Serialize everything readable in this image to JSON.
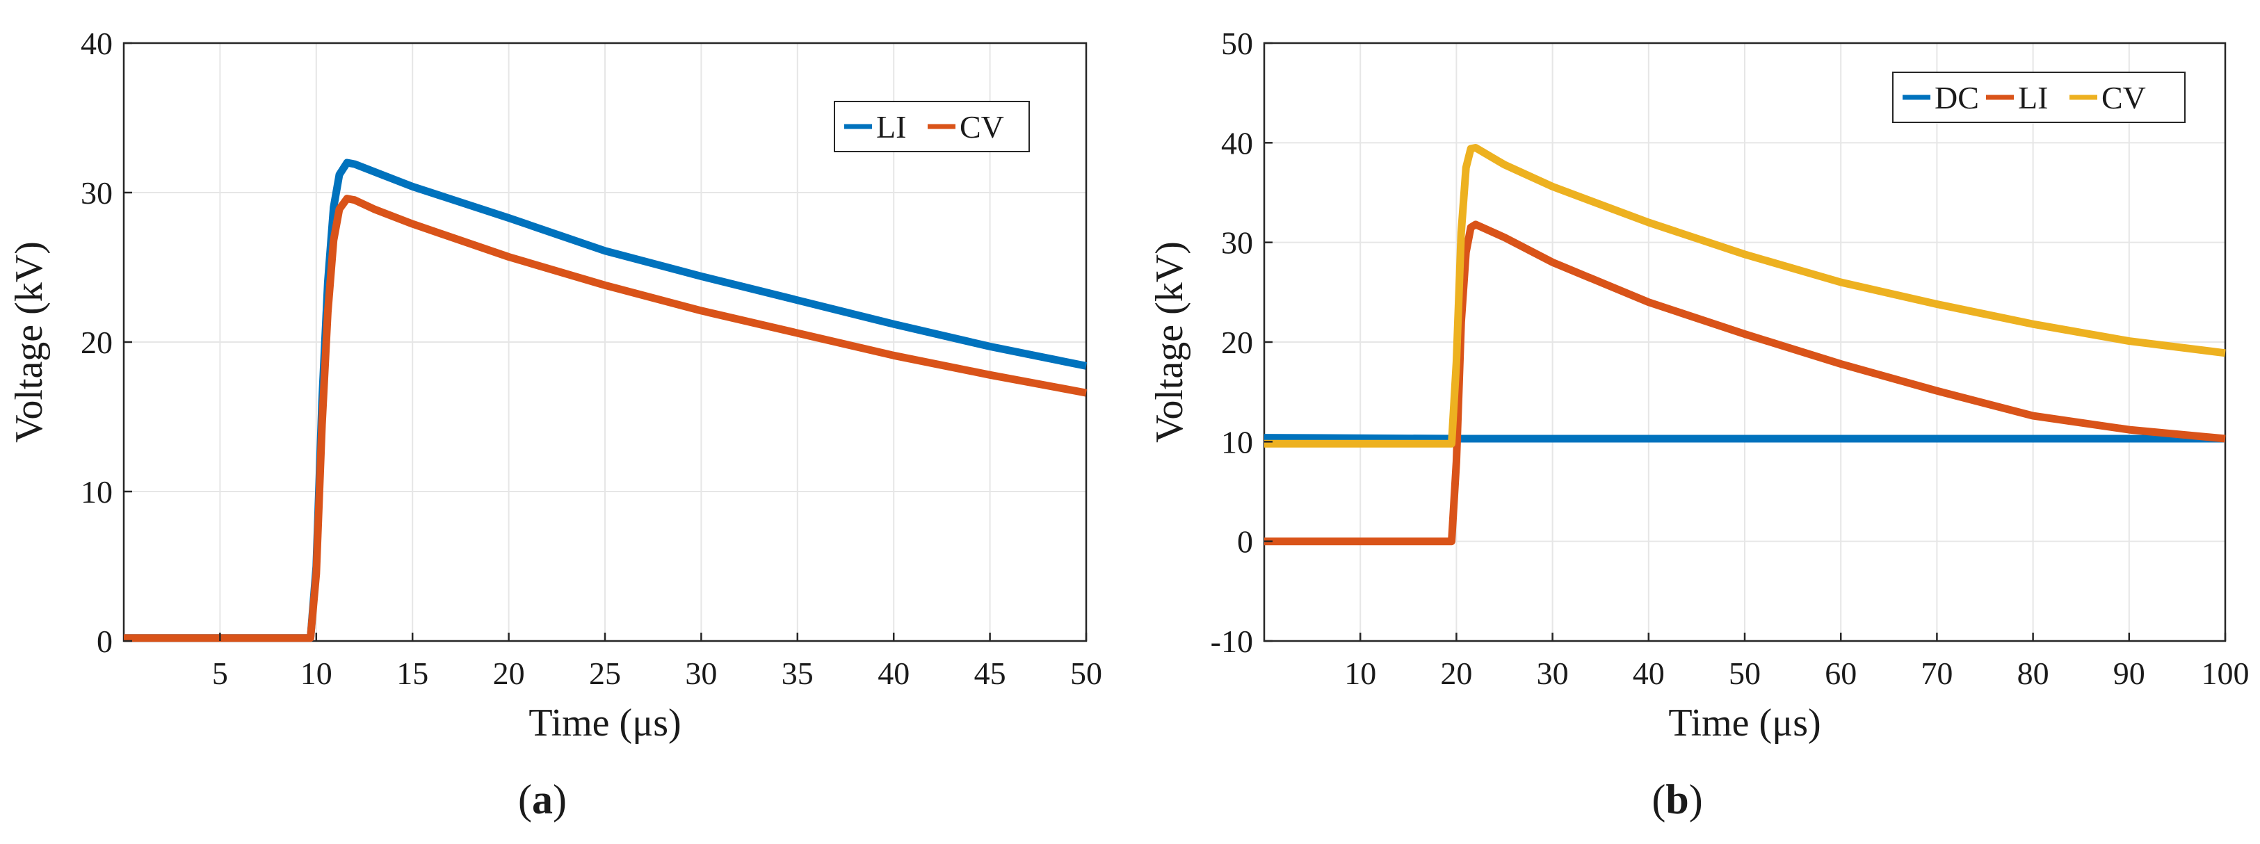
{
  "chart_data": [
    {
      "type": "line",
      "panel_label": "a",
      "xlabel": "Time (μs)",
      "ylabel": "Voltage (kV)",
      "xlim": [
        0,
        50
      ],
      "ylim": [
        0,
        40
      ],
      "xticks": [
        5,
        10,
        15,
        20,
        25,
        30,
        35,
        40,
        45,
        50
      ],
      "yticks": [
        0,
        10,
        20,
        30,
        40
      ],
      "grid": true,
      "legend_position": "top-right",
      "series": [
        {
          "name": "LI",
          "color": "#0072BD",
          "x": [
            0,
            9.7,
            10,
            10.3,
            10.6,
            10.9,
            11.2,
            11.6,
            12,
            13,
            15,
            20,
            25,
            30,
            35,
            40,
            45,
            50
          ],
          "y": [
            0.2,
            0.2,
            5,
            16,
            24,
            29,
            31.2,
            32,
            31.9,
            31.4,
            30.4,
            28.3,
            26.1,
            24.4,
            22.8,
            21.2,
            19.7,
            18.4
          ]
        },
        {
          "name": "CV",
          "color": "#D95319",
          "x": [
            0,
            9.7,
            10,
            10.3,
            10.6,
            10.9,
            11.2,
            11.6,
            12,
            13,
            15,
            20,
            25,
            30,
            35,
            40,
            45,
            50
          ],
          "y": [
            0.2,
            0.2,
            4.5,
            14.5,
            22,
            26.8,
            28.9,
            29.6,
            29.5,
            28.9,
            27.9,
            25.7,
            23.8,
            22.1,
            20.6,
            19.1,
            17.8,
            16.6
          ]
        }
      ]
    },
    {
      "type": "line",
      "panel_label": "b",
      "xlabel": "Time (μs)",
      "ylabel": "Voltage (kV)",
      "xlim": [
        0,
        100
      ],
      "ylim": [
        -10,
        50
      ],
      "xticks": [
        10,
        20,
        30,
        40,
        50,
        60,
        70,
        80,
        90,
        100
      ],
      "yticks": [
        -10,
        0,
        10,
        20,
        30,
        40,
        50
      ],
      "grid": true,
      "legend_position": "top-right",
      "series": [
        {
          "name": "DC",
          "color": "#0072BD",
          "x": [
            0,
            20,
            40,
            60,
            80,
            100
          ],
          "y": [
            10.4,
            10.3,
            10.3,
            10.3,
            10.3,
            10.3
          ]
        },
        {
          "name": "LI",
          "color": "#D95319",
          "x": [
            0,
            19.5,
            20,
            20.5,
            21,
            21.5,
            22,
            25,
            30,
            40,
            50,
            60,
            70,
            80,
            90,
            100
          ],
          "y": [
            0,
            0,
            8,
            22,
            29,
            31.5,
            31.8,
            30.5,
            28,
            24,
            20.8,
            17.8,
            15.1,
            12.6,
            11.2,
            10.3
          ]
        },
        {
          "name": "CV",
          "color": "#EDB120",
          "x": [
            0,
            19.5,
            20,
            20.5,
            21,
            21.5,
            22,
            25,
            30,
            40,
            50,
            60,
            70,
            80,
            90,
            100
          ],
          "y": [
            9.8,
            9.8,
            18,
            31,
            37.5,
            39.4,
            39.5,
            37.8,
            35.6,
            32,
            28.8,
            26,
            23.8,
            21.8,
            20.1,
            18.9
          ]
        }
      ]
    }
  ]
}
